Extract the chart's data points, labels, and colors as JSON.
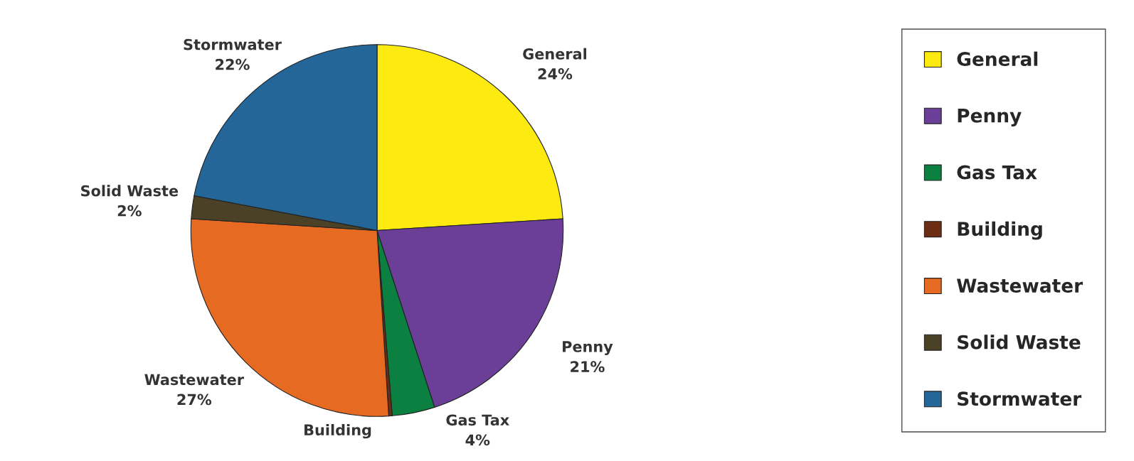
{
  "chart_data": {
    "type": "pie",
    "categories": [
      "General",
      "Penny",
      "Gas Tax",
      "Building",
      "Wastewater",
      "Solid Waste",
      "Stormwater"
    ],
    "values": [
      24,
      21,
      3.7,
      0.3,
      27,
      2,
      22
    ],
    "value_labels": [
      "24%",
      "21%",
      "4%",
      null,
      "27%",
      "2%",
      "22%"
    ],
    "colors": [
      "#fcea10",
      "#6b3f98",
      "#0b8040",
      "#6b2d14",
      "#e66a22",
      "#4a4126",
      "#246698"
    ],
    "legend": "right"
  }
}
